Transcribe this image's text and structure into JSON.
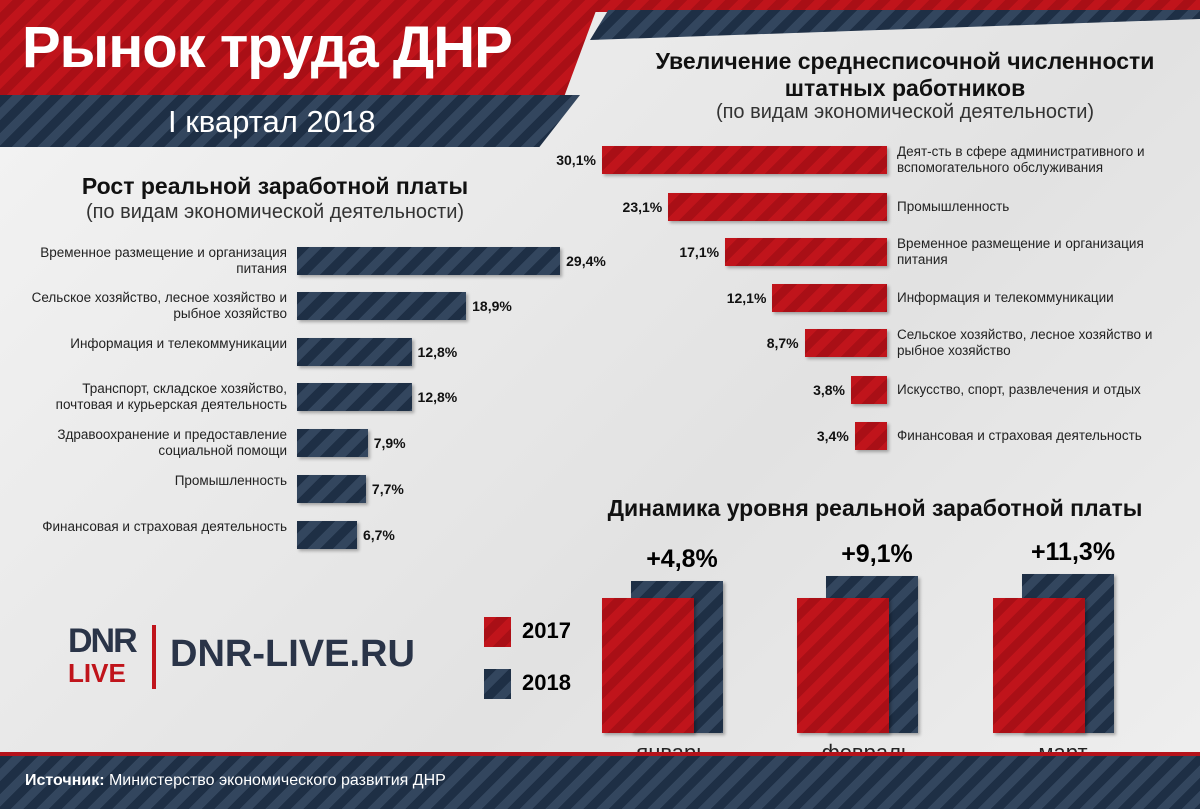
{
  "header": {
    "title": "Рынок труда ДНР",
    "subtitle": "I квартал 2018"
  },
  "colors": {
    "red": "#c0141b",
    "navy": "#1e2f45"
  },
  "chart_data": [
    {
      "type": "bar",
      "orientation": "horizontal",
      "title": "Рост реальной заработной платы",
      "subtitle": "(по видам экономической деятельности)",
      "categories": [
        "Временное размещение и организация питания",
        "Сельское хозяйство, лесное хозяйство и рыбное хозяйство",
        "Информация и телекоммуникации",
        "Транспорт, складское хозяйство, почтовая и курьерская деятельность",
        "Здравоохранение и предоставление социальной помощи",
        "Промышленность",
        "Финансовая и страховая деятельность"
      ],
      "values": [
        29.4,
        18.9,
        12.8,
        12.8,
        7.9,
        7.7,
        6.7
      ],
      "labels": [
        "29,4%",
        "18,9%",
        "12,8%",
        "12,8%",
        "7,9%",
        "7,7%",
        "6,7%"
      ],
      "color": "#1e2f45"
    },
    {
      "type": "bar",
      "orientation": "horizontal",
      "title": "Увеличение среднесписочной численности штатных работников",
      "subtitle": "(по видам экономической деятельности)",
      "categories": [
        "Деят-сть в сфере административного и вспомогательного обслуживания",
        "Промышленность",
        "Временное размещение и организация питания",
        "Информация и телекоммуникации",
        "Сельское хозяйство, лесное хозяйство и рыбное хозяйство",
        "Искусство, спорт, развлечения и отдых",
        "Финансовая и страховая деятельность"
      ],
      "values": [
        30.1,
        23.1,
        17.1,
        12.1,
        8.7,
        3.8,
        3.4
      ],
      "labels": [
        "30,1%",
        "23,1%",
        "17,1%",
        "12,1%",
        "8,7%",
        "3,8%",
        "3,4%"
      ],
      "color": "#c0141b"
    },
    {
      "type": "bar",
      "title": "Динамика уровня реальной заработной платы",
      "categories": [
        "январь",
        "февраль",
        "март"
      ],
      "series": [
        {
          "name": "2017",
          "color": "#c0141b"
        },
        {
          "name": "2018",
          "color": "#1e2f45"
        }
      ],
      "growth_pct": [
        4.8,
        9.1,
        11.3
      ],
      "labels": [
        "+4,8%",
        "+9,1%",
        "+11,3%"
      ],
      "legend": "left"
    }
  ],
  "brand": {
    "logo_top": "DNR",
    "logo_bottom": "LIVE",
    "site": "DNR-LIVE.RU"
  },
  "footer": {
    "source_label": "Источник:",
    "source_text": " Министерство экономического развития ДНР"
  }
}
